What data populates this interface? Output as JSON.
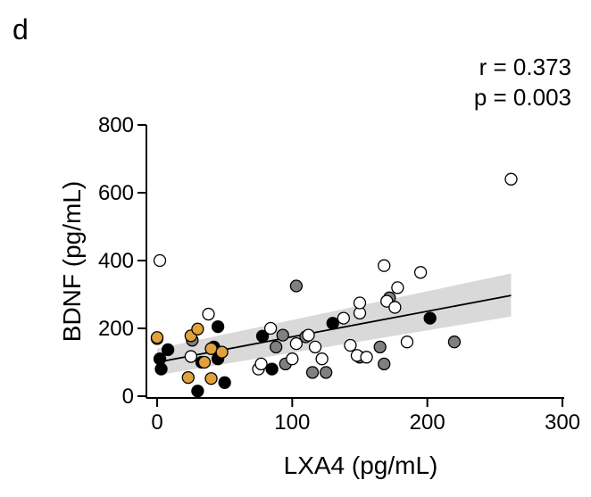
{
  "panel_label": "d",
  "chart_data": {
    "type": "scatter",
    "xlabel": "LXA4 (pg/mL)",
    "ylabel": "BDNF (pg/mL)",
    "xlim": [
      0,
      300
    ],
    "ylim": [
      0,
      800
    ],
    "xticks": [
      0,
      100,
      200,
      300
    ],
    "yticks": [
      0,
      200,
      400,
      600,
      800
    ],
    "grid": false,
    "annotations": [
      "r = 0.373",
      "p = 0.003"
    ],
    "colors": {
      "black": "#000000",
      "grey": "#808080",
      "white": "#ffffff",
      "orange": "#e0a23c",
      "band": "#d9d9d9"
    },
    "regression": {
      "x": [
        0,
        262
      ],
      "y": [
        100,
        297
      ],
      "ci_lower": [
        62,
        235
      ],
      "ci_upper": [
        140,
        362
      ]
    },
    "series": [
      {
        "color": "black",
        "points": [
          [
            0,
            170
          ],
          [
            2,
            110
          ],
          [
            3,
            80
          ],
          [
            8,
            137
          ],
          [
            30,
            15
          ],
          [
            33,
            100
          ],
          [
            42,
            145
          ],
          [
            45,
            205
          ],
          [
            45,
            110
          ],
          [
            50,
            40
          ],
          [
            78,
            177
          ],
          [
            85,
            80
          ],
          [
            130,
            215
          ],
          [
            202,
            230
          ]
        ]
      },
      {
        "color": "grey",
        "points": [
          [
            26,
            165
          ],
          [
            88,
            145
          ],
          [
            93,
            180
          ],
          [
            95,
            95
          ],
          [
            103,
            325
          ],
          [
            110,
            175
          ],
          [
            115,
            70
          ],
          [
            125,
            70
          ],
          [
            150,
            115
          ],
          [
            172,
            290
          ],
          [
            165,
            145
          ],
          [
            168,
            95
          ],
          [
            220,
            160
          ]
        ]
      },
      {
        "color": "white",
        "points": [
          [
            2,
            400
          ],
          [
            25,
            117
          ],
          [
            38,
            242
          ],
          [
            75,
            80
          ],
          [
            77,
            95
          ],
          [
            84,
            200
          ],
          [
            100,
            110
          ],
          [
            103,
            155
          ],
          [
            112,
            180
          ],
          [
            117,
            145
          ],
          [
            122,
            110
          ],
          [
            138,
            230
          ],
          [
            143,
            150
          ],
          [
            148,
            120
          ],
          [
            150,
            245
          ],
          [
            150,
            275
          ],
          [
            155,
            115
          ],
          [
            168,
            385
          ],
          [
            170,
            280
          ],
          [
            176,
            262
          ],
          [
            178,
            320
          ],
          [
            185,
            160
          ],
          [
            195,
            365
          ],
          [
            262,
            640
          ]
        ]
      },
      {
        "color": "orange",
        "points": [
          [
            0,
            173
          ],
          [
            23,
            55
          ],
          [
            25,
            178
          ],
          [
            30,
            198
          ],
          [
            35,
            100
          ],
          [
            40,
            140
          ],
          [
            40,
            52
          ],
          [
            48,
            130
          ]
        ]
      }
    ]
  }
}
